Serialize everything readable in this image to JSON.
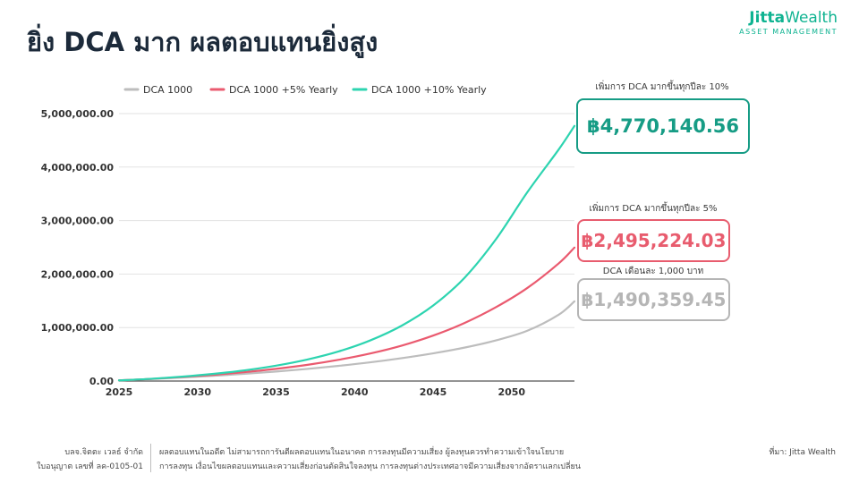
{
  "title": "ยิ่ง DCA มาก ผลตอบแทนยิ่งสูง",
  "brand": {
    "name_bold": "Jitta",
    "name_light": "Wealth",
    "subtitle": "ASSET MANAGEMENT",
    "color": "#0fb391"
  },
  "chart_data": {
    "type": "line",
    "title": "",
    "xlabel": "",
    "ylabel": "",
    "x_ticks": [
      2025,
      2030,
      2035,
      2040,
      2045,
      2050
    ],
    "y_ticks": [
      0,
      1000000,
      2000000,
      3000000,
      4000000,
      5000000
    ],
    "y_tick_labels": [
      "0.00",
      "1,000,000.00",
      "2,000,000.00",
      "3,000,000.00",
      "4,000,000.00",
      "5,000,000.00"
    ],
    "xlim": [
      2025,
      2054
    ],
    "ylim": [
      0,
      5000000
    ],
    "grid": "horizontal",
    "legend_position": "top",
    "x": [
      2025,
      2027,
      2029,
      2031,
      2033,
      2035,
      2037,
      2039,
      2041,
      2043,
      2045,
      2047,
      2049,
      2051,
      2053,
      2054
    ],
    "series": [
      {
        "name": "DCA 1000",
        "color": "#bdbdbd",
        "values": [
          12000,
          37000,
          66000,
          98000,
          135000,
          178000,
          227000,
          284000,
          350000,
          428000,
          518000,
          625000,
          760000,
          940000,
          1240000,
          1490359
        ]
      },
      {
        "name": "DCA 1000 +5% Yearly",
        "color": "#ea5a6f",
        "values": [
          12000,
          39000,
          74000,
          115000,
          166000,
          228000,
          303000,
          398000,
          515000,
          662000,
          850000,
          1085000,
          1380000,
          1740000,
          2200000,
          2495224
        ]
      },
      {
        "name": "DCA 1000 +10% Yearly",
        "color": "#2dd4b0",
        "values": [
          12000,
          41000,
          82000,
          134000,
          200000,
          288000,
          403000,
          555000,
          760000,
          1035000,
          1410000,
          1930000,
          2650000,
          3530000,
          4330000,
          4770141
        ]
      }
    ]
  },
  "callouts": [
    {
      "caption": "เพิ่มการ DCA มากขึ้นทุกปีละ 10%",
      "value": "฿4,770,140.56",
      "color": "#169c85"
    },
    {
      "caption": "เพิ่มการ DCA มากขึ้นทุกปีละ 5%",
      "value": "฿2,495,224.03",
      "color": "#e85c6e"
    },
    {
      "caption": "DCA เดือนละ 1,000 บาท",
      "value": "฿1,490,359.45",
      "color": "#b5b5b5"
    }
  ],
  "footer": {
    "company": "บลจ.จิตตะ เวลธ์ จำกัด",
    "license": "ใบอนุญาต เลขที่ ลค-0105-01",
    "disclaimer_1": "ผลตอบแทนในอดีต ไม่สามารถการันตีผลตอบแทนในอนาคต การลงทุนมีความเสี่ยง ผู้ลงทุนควรทำความเข้าใจนโยบาย",
    "disclaimer_2": "การลงทุน เงื่อนไขผลตอบแทนและความเสี่ยงก่อนตัดสินใจลงทุน การลงทุนต่างประเทศอาจมีความเสี่ยงจากอัตราแลกเปลี่ยน",
    "source": "ที่มา: Jitta Wealth"
  }
}
